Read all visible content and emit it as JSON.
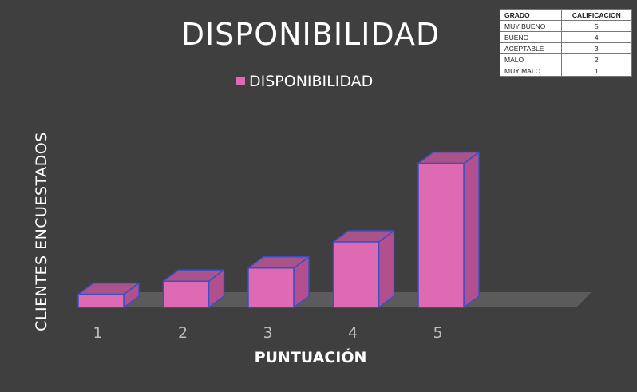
{
  "chart_data": {
    "type": "bar",
    "title": "DISPONIBILIDAD",
    "xlabel": "PUNTUACIÓN",
    "ylabel": "CLIENTES ENCUESTADOS",
    "categories": [
      "1",
      "2",
      "3",
      "4",
      "5"
    ],
    "series": [
      {
        "name": "DISPONIBILIDAD",
        "values": [
          1,
          2,
          3,
          5,
          11
        ]
      }
    ],
    "legend_position": "top-center",
    "grid": false,
    "three_d": true,
    "colors": {
      "bar_front": "#de6ab4",
      "bar_top": "#a8538a",
      "bar_side": "#b2508f",
      "bar_edge": "#3b4fc4",
      "floor": "#5b5b5b",
      "background": "#403f3f"
    }
  },
  "reference_table": {
    "headers": [
      "GRADO",
      "CALIFICACION"
    ],
    "rows": [
      [
        "MUY BUENO",
        "5"
      ],
      [
        "BUENO",
        "4"
      ],
      [
        "ACEPTABLE",
        "3"
      ],
      [
        "MALO",
        "2"
      ],
      [
        "MUY MALO",
        "1"
      ]
    ]
  }
}
